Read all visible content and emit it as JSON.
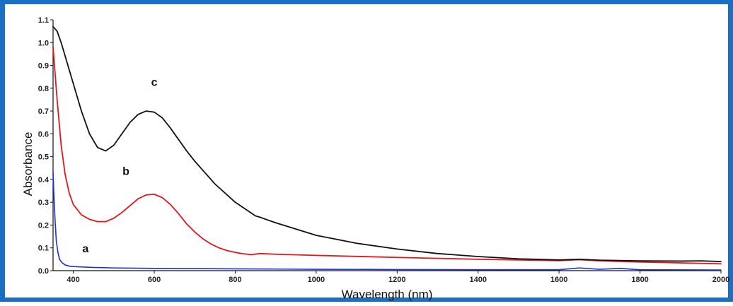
{
  "colors": {
    "frame_border": "#1a6fc4",
    "curve_a": "#1a2fd8",
    "curve_b": "#e8141c",
    "curve_c": "#111111"
  },
  "chart_data": {
    "type": "line",
    "xlabel": "Wavelength (nm)",
    "ylabel": "Absorbance",
    "xlim": [
      350,
      2000
    ],
    "ylim": [
      0.0,
      1.1
    ],
    "xticks": [
      400,
      600,
      800,
      1000,
      1200,
      1400,
      1600,
      1800,
      2000
    ],
    "xtick_labels": [
      "400",
      "600",
      "800",
      "1000",
      "1200",
      "1400",
      "1600",
      "1800",
      "2000"
    ],
    "yticks": [
      0.0,
      0.1,
      0.2,
      0.3,
      0.4,
      0.5,
      0.6,
      0.7,
      0.8,
      0.9,
      1.0,
      1.1
    ],
    "ytick_labels": [
      "0.0",
      "0.1",
      "0.2",
      "0.3",
      "0.4",
      "0.5",
      "0.6",
      "0.7",
      "0.8",
      "0.9",
      "1.0",
      "1.1"
    ],
    "grid": false,
    "legend": "none",
    "annotations": [
      {
        "text": "a",
        "x": 430,
        "y": 0.08
      },
      {
        "text": "b",
        "x": 530,
        "y": 0.42
      },
      {
        "text": "c",
        "x": 600,
        "y": 0.81
      }
    ],
    "series": [
      {
        "label": "a",
        "color": "#1a2fd8",
        "x": [
          350,
          352,
          355,
          358,
          362,
          366,
          372,
          380,
          390,
          400,
          450,
          500,
          600,
          700,
          800,
          900,
          1000,
          1200,
          1400,
          1600,
          1650,
          1700,
          1750,
          1800,
          2000
        ],
        "y": [
          0.43,
          0.33,
          0.22,
          0.13,
          0.08,
          0.05,
          0.035,
          0.025,
          0.02,
          0.018,
          0.014,
          0.012,
          0.01,
          0.009,
          0.008,
          0.007,
          0.006,
          0.005,
          0.004,
          0.004,
          0.012,
          0.006,
          0.01,
          0.004,
          0.003
        ]
      },
      {
        "label": "b",
        "color": "#e8141c",
        "x": [
          350,
          360,
          370,
          380,
          390,
          400,
          420,
          440,
          460,
          480,
          500,
          520,
          540,
          560,
          580,
          600,
          620,
          640,
          660,
          680,
          700,
          720,
          740,
          760,
          780,
          800,
          820,
          840,
          860,
          900,
          1000,
          1200,
          1400,
          1600,
          1650,
          1700,
          1800,
          1900,
          2000
        ],
        "y": [
          0.98,
          0.75,
          0.55,
          0.42,
          0.34,
          0.29,
          0.245,
          0.225,
          0.215,
          0.215,
          0.23,
          0.255,
          0.285,
          0.315,
          0.332,
          0.335,
          0.32,
          0.29,
          0.25,
          0.205,
          0.17,
          0.14,
          0.117,
          0.1,
          0.088,
          0.08,
          0.074,
          0.07,
          0.075,
          0.072,
          0.067,
          0.058,
          0.05,
          0.044,
          0.048,
          0.043,
          0.038,
          0.034,
          0.03
        ]
      },
      {
        "label": "c",
        "color": "#111111",
        "x": [
          350,
          360,
          370,
          380,
          400,
          420,
          440,
          460,
          480,
          500,
          520,
          540,
          560,
          580,
          600,
          620,
          640,
          660,
          680,
          700,
          750,
          800,
          850,
          860,
          900,
          1000,
          1100,
          1200,
          1300,
          1400,
          1500,
          1600,
          1650,
          1700,
          1800,
          1900,
          1950,
          2000
        ],
        "y": [
          1.07,
          1.05,
          1.0,
          0.94,
          0.82,
          0.7,
          0.6,
          0.54,
          0.525,
          0.55,
          0.6,
          0.65,
          0.685,
          0.7,
          0.695,
          0.67,
          0.625,
          0.575,
          0.525,
          0.48,
          0.38,
          0.3,
          0.24,
          0.235,
          0.21,
          0.155,
          0.12,
          0.095,
          0.075,
          0.062,
          0.052,
          0.047,
          0.05,
          0.046,
          0.043,
          0.042,
          0.043,
          0.04
        ]
      }
    ]
  }
}
